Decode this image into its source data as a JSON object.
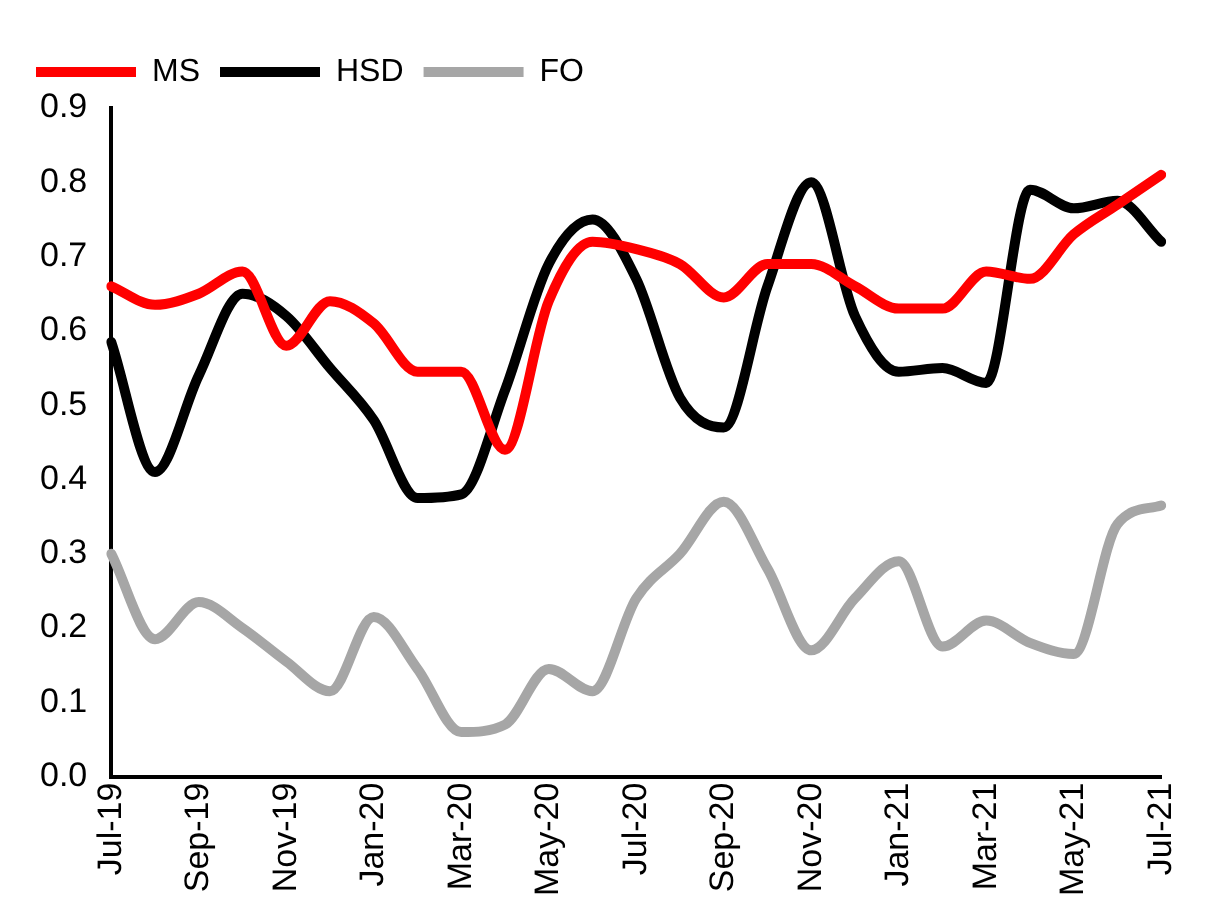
{
  "chart_data": {
    "type": "line",
    "categories": [
      "Jul-19",
      null,
      "Sep-19",
      null,
      "Nov-19",
      null,
      "Jan-20",
      null,
      "Mar-20",
      null,
      "May-20",
      null,
      "Jul-20",
      null,
      "Sep-20",
      null,
      "Nov-20",
      null,
      "Jan-21",
      null,
      "Mar-21",
      null,
      "May-21",
      null,
      "Jul-21"
    ],
    "series": [
      {
        "name": "MS",
        "color": "#ff0000",
        "values": [
          0.66,
          0.635,
          0.65,
          0.68,
          0.58,
          0.64,
          0.61,
          0.545,
          0.545,
          0.44,
          0.64,
          0.72,
          0.71,
          0.69,
          0.645,
          0.69,
          0.69,
          0.66,
          0.63,
          0.63,
          0.68,
          0.67,
          0.73,
          0.77,
          0.81
        ]
      },
      {
        "name": "HSD",
        "color": "#000000",
        "values": [
          0.585,
          0.41,
          0.54,
          0.65,
          0.62,
          0.55,
          0.48,
          0.375,
          0.38,
          0.52,
          0.69,
          0.75,
          0.67,
          0.51,
          0.47,
          0.66,
          0.8,
          0.62,
          0.545,
          0.55,
          0.53,
          0.79,
          0.765,
          0.775,
          0.72
        ]
      },
      {
        "name": "FO",
        "color": "#a6a6a6",
        "values": [
          0.3,
          0.185,
          0.235,
          0.2,
          0.155,
          0.115,
          0.215,
          0.145,
          0.06,
          0.07,
          0.145,
          0.115,
          0.24,
          0.3,
          0.37,
          0.28,
          0.17,
          0.24,
          0.29,
          0.175,
          0.21,
          0.18,
          0.165,
          0.34,
          0.365
        ]
      }
    ],
    "ylim": [
      0,
      0.9
    ],
    "yticks": [
      {
        "value": 0,
        "label": "0.0"
      },
      0.1,
      0.2,
      0.3,
      0.4,
      0.5,
      0.6,
      0.7,
      0.8,
      0.9
    ],
    "grid": false,
    "legend": "top left",
    "marker": "none",
    "line_style": "solid"
  }
}
